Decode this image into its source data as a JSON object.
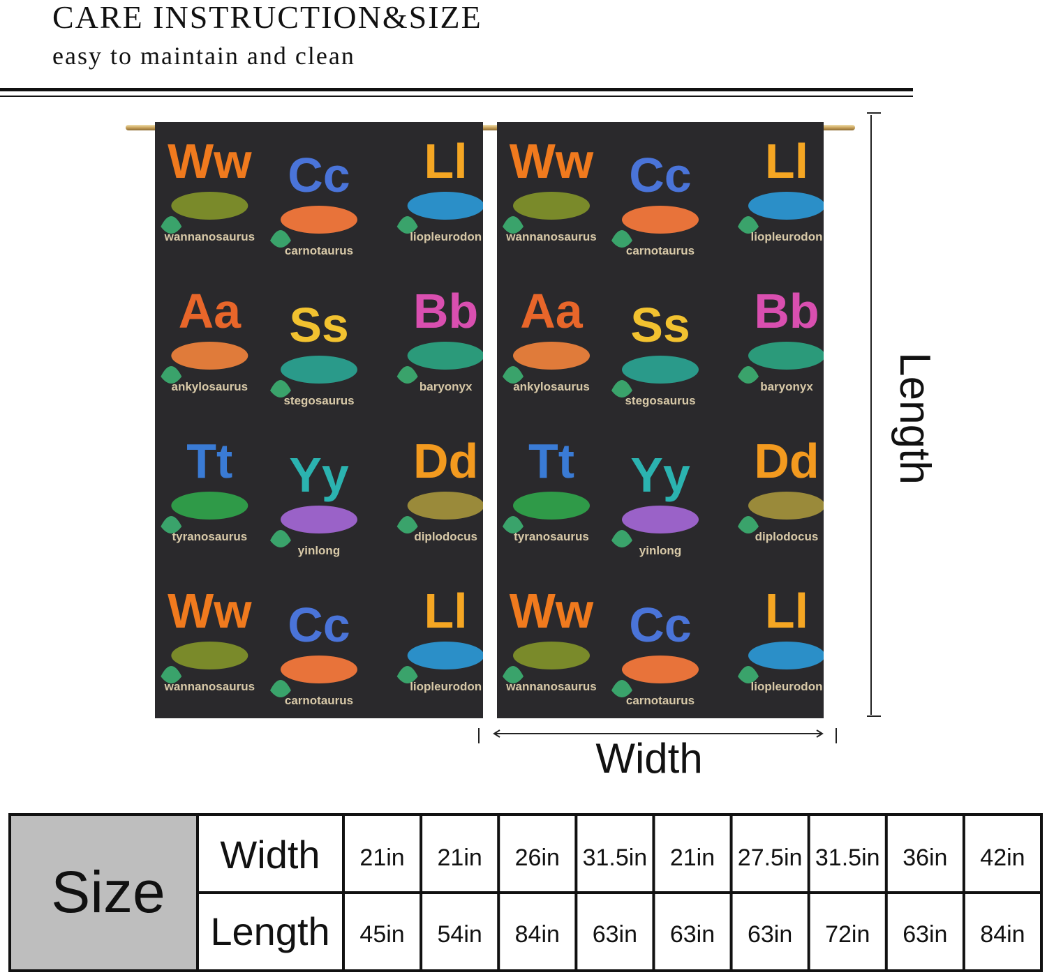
{
  "header": {
    "title": "CARE INSTRUCTION&SIZE",
    "subtitle": "easy to maintain and clean"
  },
  "curtain": {
    "pattern": [
      {
        "letters": "Ww",
        "name": "wannanosaurus",
        "color": "#f07a1e"
      },
      {
        "letters": "Aa",
        "name": "ankylosaurus",
        "color": "#e8662a"
      },
      {
        "letters": "Tt",
        "name": "tyranosaurus",
        "color": "#3a7bd5"
      },
      {
        "letters": "Cc",
        "name": "carnotaurus",
        "color": "#4a74d9"
      },
      {
        "letters": "Ss",
        "name": "stegosaurus",
        "color": "#f2c230"
      },
      {
        "letters": "Yy",
        "name": "yinlong",
        "color": "#2bb3b0"
      },
      {
        "letters": "Ll",
        "name": "liopleurodon",
        "color": "#f5a623"
      },
      {
        "letters": "Bb",
        "name": "baryonyx",
        "color": "#d94fb0"
      },
      {
        "letters": "Dd",
        "name": "diplodocus",
        "color": "#f39a1f"
      }
    ]
  },
  "dimensions": {
    "length": "Length",
    "width": "Width"
  },
  "table": {
    "label": "Size",
    "rows": [
      {
        "label": "Width",
        "cells": [
          "21in",
          "21in",
          "26in",
          "31.5in",
          "21in",
          "27.5in",
          "31.5in",
          "36in",
          "42in"
        ]
      },
      {
        "label": "Length",
        "cells": [
          "45in",
          "54in",
          "84in",
          "63in",
          "63in",
          "63in",
          "72in",
          "63in",
          "84in"
        ]
      }
    ]
  }
}
